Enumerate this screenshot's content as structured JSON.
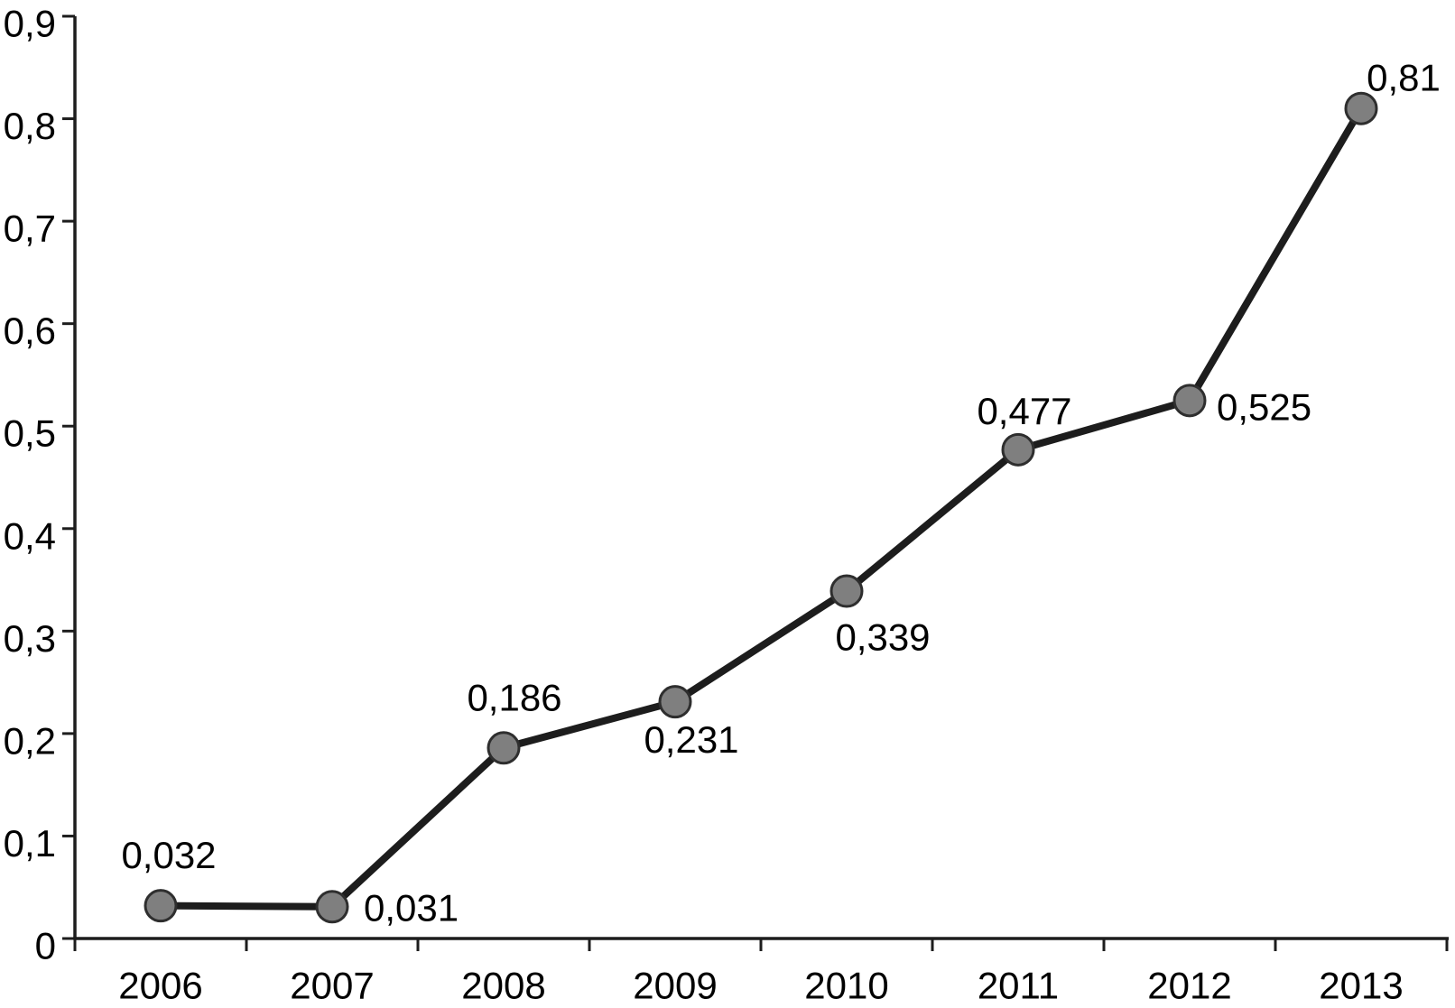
{
  "chart_data": {
    "type": "line",
    "title": "",
    "xlabel": "",
    "ylabel": "",
    "categories": [
      "2006",
      "2007",
      "2008",
      "2009",
      "2010",
      "2011",
      "2012",
      "2013"
    ],
    "series": [
      {
        "name": "series-1",
        "values": [
          0.032,
          0.031,
          0.186,
          0.231,
          0.339,
          0.477,
          0.525,
          0.81
        ],
        "point_labels": [
          "0,032",
          "0,031",
          "0,186",
          "0,231",
          "0,339",
          "0,477",
          "0,525",
          "0,81"
        ]
      }
    ],
    "ylim": [
      0,
      0.9
    ],
    "y_ticks": [
      0,
      0.1,
      0.2,
      0.3,
      0.4,
      0.5,
      0.6,
      0.7,
      0.8,
      0.9
    ],
    "y_tick_labels": [
      "0",
      "0,1",
      "0,2",
      "0,3",
      "0,4",
      "0,5",
      "0,6",
      "0,7",
      "0,8",
      "0,9"
    ],
    "decimal_separator": ",",
    "grid": "off",
    "legend": "none",
    "colors": {
      "background": "#ffffff",
      "line": "#1d1d1d",
      "marker_fill": "#7f7f7f",
      "marker_stroke": "#2e2e2e",
      "axis": "#1d1d1d",
      "text": "#000000"
    }
  }
}
